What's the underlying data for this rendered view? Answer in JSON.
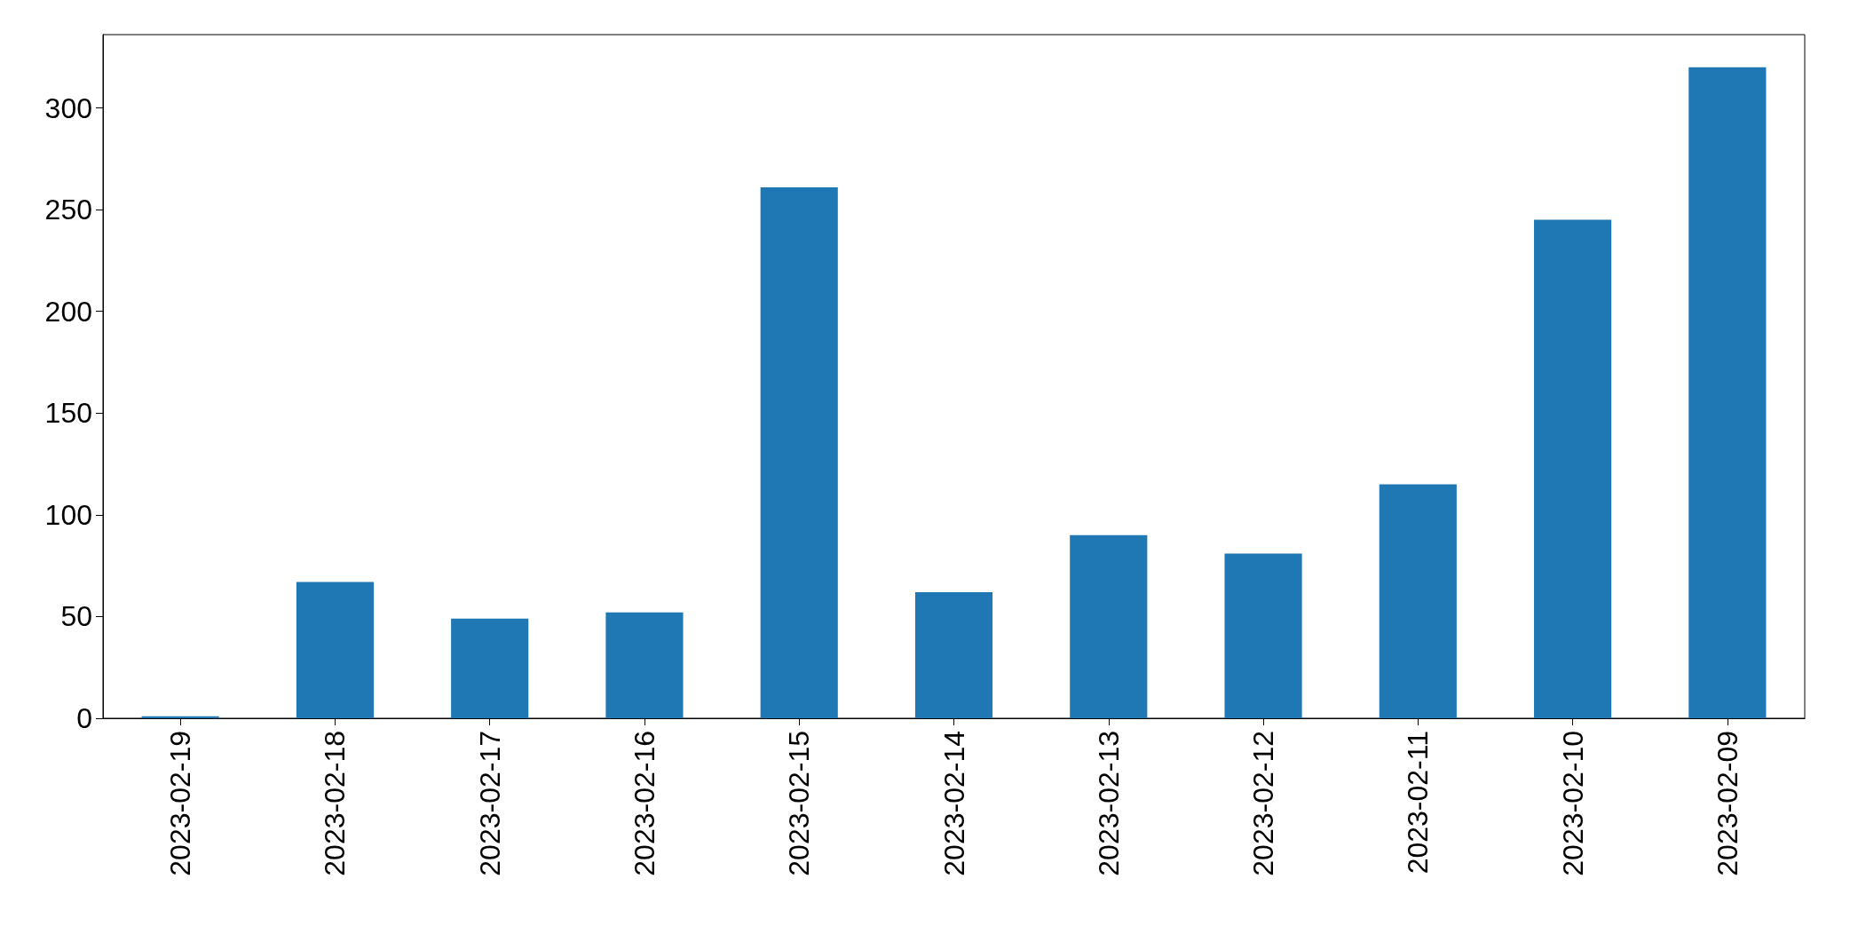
{
  "chart_data": {
    "type": "bar",
    "categories": [
      "2023-02-19",
      "2023-02-18",
      "2023-02-17",
      "2023-02-16",
      "2023-02-15",
      "2023-02-14",
      "2023-02-13",
      "2023-02-12",
      "2023-02-11",
      "2023-02-10",
      "2023-02-09"
    ],
    "values": [
      1,
      67,
      49,
      52,
      261,
      62,
      90,
      81,
      115,
      245,
      320
    ],
    "color": "#1f77b4",
    "ylim": [
      0,
      336
    ],
    "yticks": [
      0,
      50,
      100,
      150,
      200,
      250,
      300
    ]
  }
}
